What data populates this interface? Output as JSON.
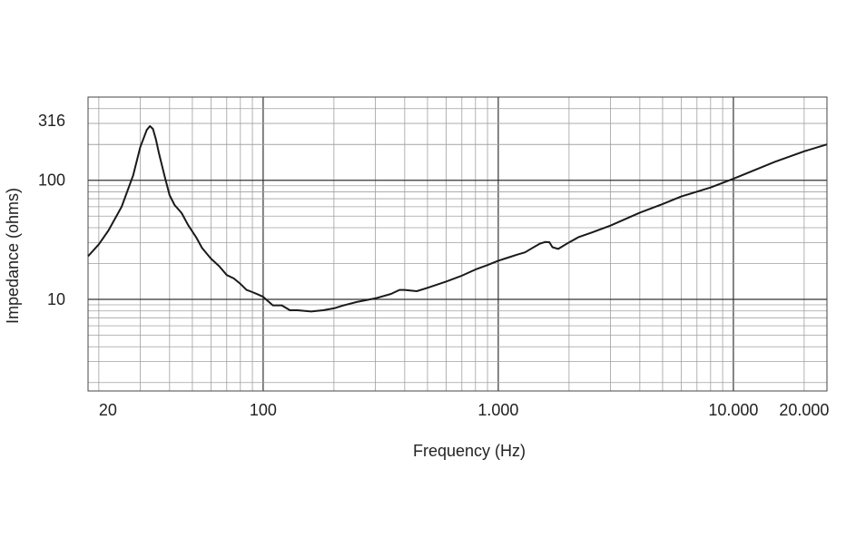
{
  "chart_data": {
    "type": "line",
    "xlabel": "Frequency (Hz)",
    "ylabel": "Impedance (ohms)",
    "xscale": "log",
    "yscale": "log",
    "xlim": [
      18,
      25000
    ],
    "ylim": [
      1.7,
      500
    ],
    "x_ticks": [
      {
        "value": 20,
        "label": "20"
      },
      {
        "value": 100,
        "label": "100"
      },
      {
        "value": 1000,
        "label": "1.000"
      },
      {
        "value": 10000,
        "label": "10.000"
      },
      {
        "value": 20000,
        "label": "20.000"
      }
    ],
    "y_ticks": [
      {
        "value": 10,
        "label": "10"
      },
      {
        "value": 100,
        "label": "100"
      },
      {
        "value": 316,
        "label": "316"
      }
    ],
    "grid": true,
    "line_color": "#1a1a1a",
    "grid_color": "#a0a0a0",
    "major_grid_color": "#333333",
    "series": [
      {
        "x": [
          18,
          20,
          22,
          25,
          28,
          30,
          32,
          33,
          34,
          35,
          36,
          38,
          40,
          42,
          45,
          48,
          52,
          55,
          60,
          65,
          70,
          75,
          80,
          85,
          90,
          95,
          100,
          110,
          120,
          130,
          140,
          160,
          180,
          200,
          220,
          250,
          300,
          350,
          380,
          400,
          450,
          500,
          600,
          700,
          800,
          900,
          1000,
          1100,
          1200,
          1300,
          1400,
          1500,
          1580,
          1650,
          1700,
          1800,
          2000,
          2200,
          2500,
          3000,
          4000,
          5000,
          6000,
          8000,
          10000,
          15000,
          20000,
          25000
        ],
        "y": [
          23,
          29,
          38,
          60,
          110,
          190,
          265,
          285,
          270,
          220,
          170,
          110,
          75,
          62,
          53,
          42,
          33,
          27,
          22,
          19,
          16,
          15,
          13.5,
          12,
          11.5,
          11,
          10.5,
          8.9,
          8.9,
          8.1,
          8.1,
          7.9,
          8.1,
          8.4,
          8.9,
          9.5,
          10.2,
          11.1,
          12,
          12,
          11.7,
          12.5,
          14.1,
          15.8,
          17.8,
          19.4,
          21.1,
          22.4,
          23.7,
          24.8,
          27.1,
          29.3,
          30.3,
          30.2,
          27.4,
          26.5,
          30.1,
          33.4,
          36.4,
          41.6,
          53.5,
          63.2,
          73.1,
          86.9,
          103,
          143,
          175,
          200
        ]
      }
    ]
  }
}
